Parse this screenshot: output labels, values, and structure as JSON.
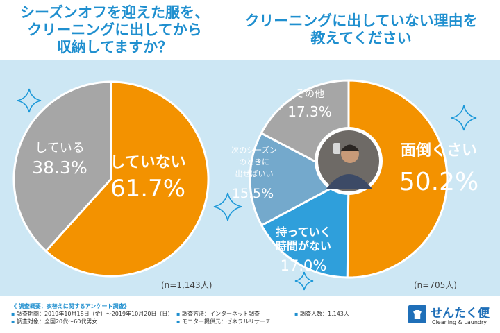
{
  "chart_data": [
    {
      "type": "pie",
      "title": "シーズンオフを迎えた服を、クリーニングに出してから収納してますか？",
      "slices": [
        {
          "label": "していない",
          "value": 61.7,
          "value_label": "61.7%",
          "color": "#f39200"
        },
        {
          "label": "している",
          "value": 38.3,
          "value_label": "38.3%",
          "color": "#a6a6a6"
        }
      ],
      "n_label": "(n=1,143人)"
    },
    {
      "type": "pie",
      "title": "クリーニングに出していない理由を教えてください",
      "slices": [
        {
          "label": "面倒くさい",
          "value": 50.2,
          "value_label": "50.2%",
          "color": "#f39200"
        },
        {
          "label": "持っていく時間がない",
          "value": 17.0,
          "value_label": "17.0%",
          "color": "#2f9fdb"
        },
        {
          "label": "次のシーズンのときに出せばいい",
          "value": 15.5,
          "value_label": "15.5%",
          "color": "#74a9cc"
        },
        {
          "label": "その他",
          "value": 17.3,
          "value_label": "17.3%",
          "color": "#a6a6a6"
        }
      ],
      "n_label": "(n=705人)"
    }
  ],
  "titles": {
    "left": [
      "シーズンオフを迎えた服を、",
      "クリーニングに出してから",
      "収納してますか？"
    ],
    "right": [
      "クリーニングに出していない理由を",
      "教えてください"
    ]
  },
  "slice_label_lines": {
    "left_orange": [
      "していない"
    ],
    "left_gray": [
      "している"
    ],
    "right_orange": [
      "面倒くさい"
    ],
    "right_blue": [
      "持っていく",
      "時間がない"
    ],
    "right_lightblue": [
      "次のシーズン",
      "のときに",
      "出せばいい"
    ],
    "right_gray": [
      "その他"
    ]
  },
  "notes": {
    "heading": "《 調査概要：衣替えに関するアンケート調査》",
    "period": "調査期間：2019年10月18日（金）〜2019年10月20日（日）",
    "target": "調査対象：全国20代〜60代男女",
    "method": "調査方法：インターネット調査",
    "monitor": "モニター提供元：ゼネラルリサーチ",
    "count": "調査人数：1,143人"
  },
  "logo": {
    "name": "せんたく便",
    "sub": "Cleaning & Laundry"
  },
  "colors": {
    "title": "#1f8fcf",
    "band": "#cde7f4",
    "sparkle": "#1b98d8"
  }
}
